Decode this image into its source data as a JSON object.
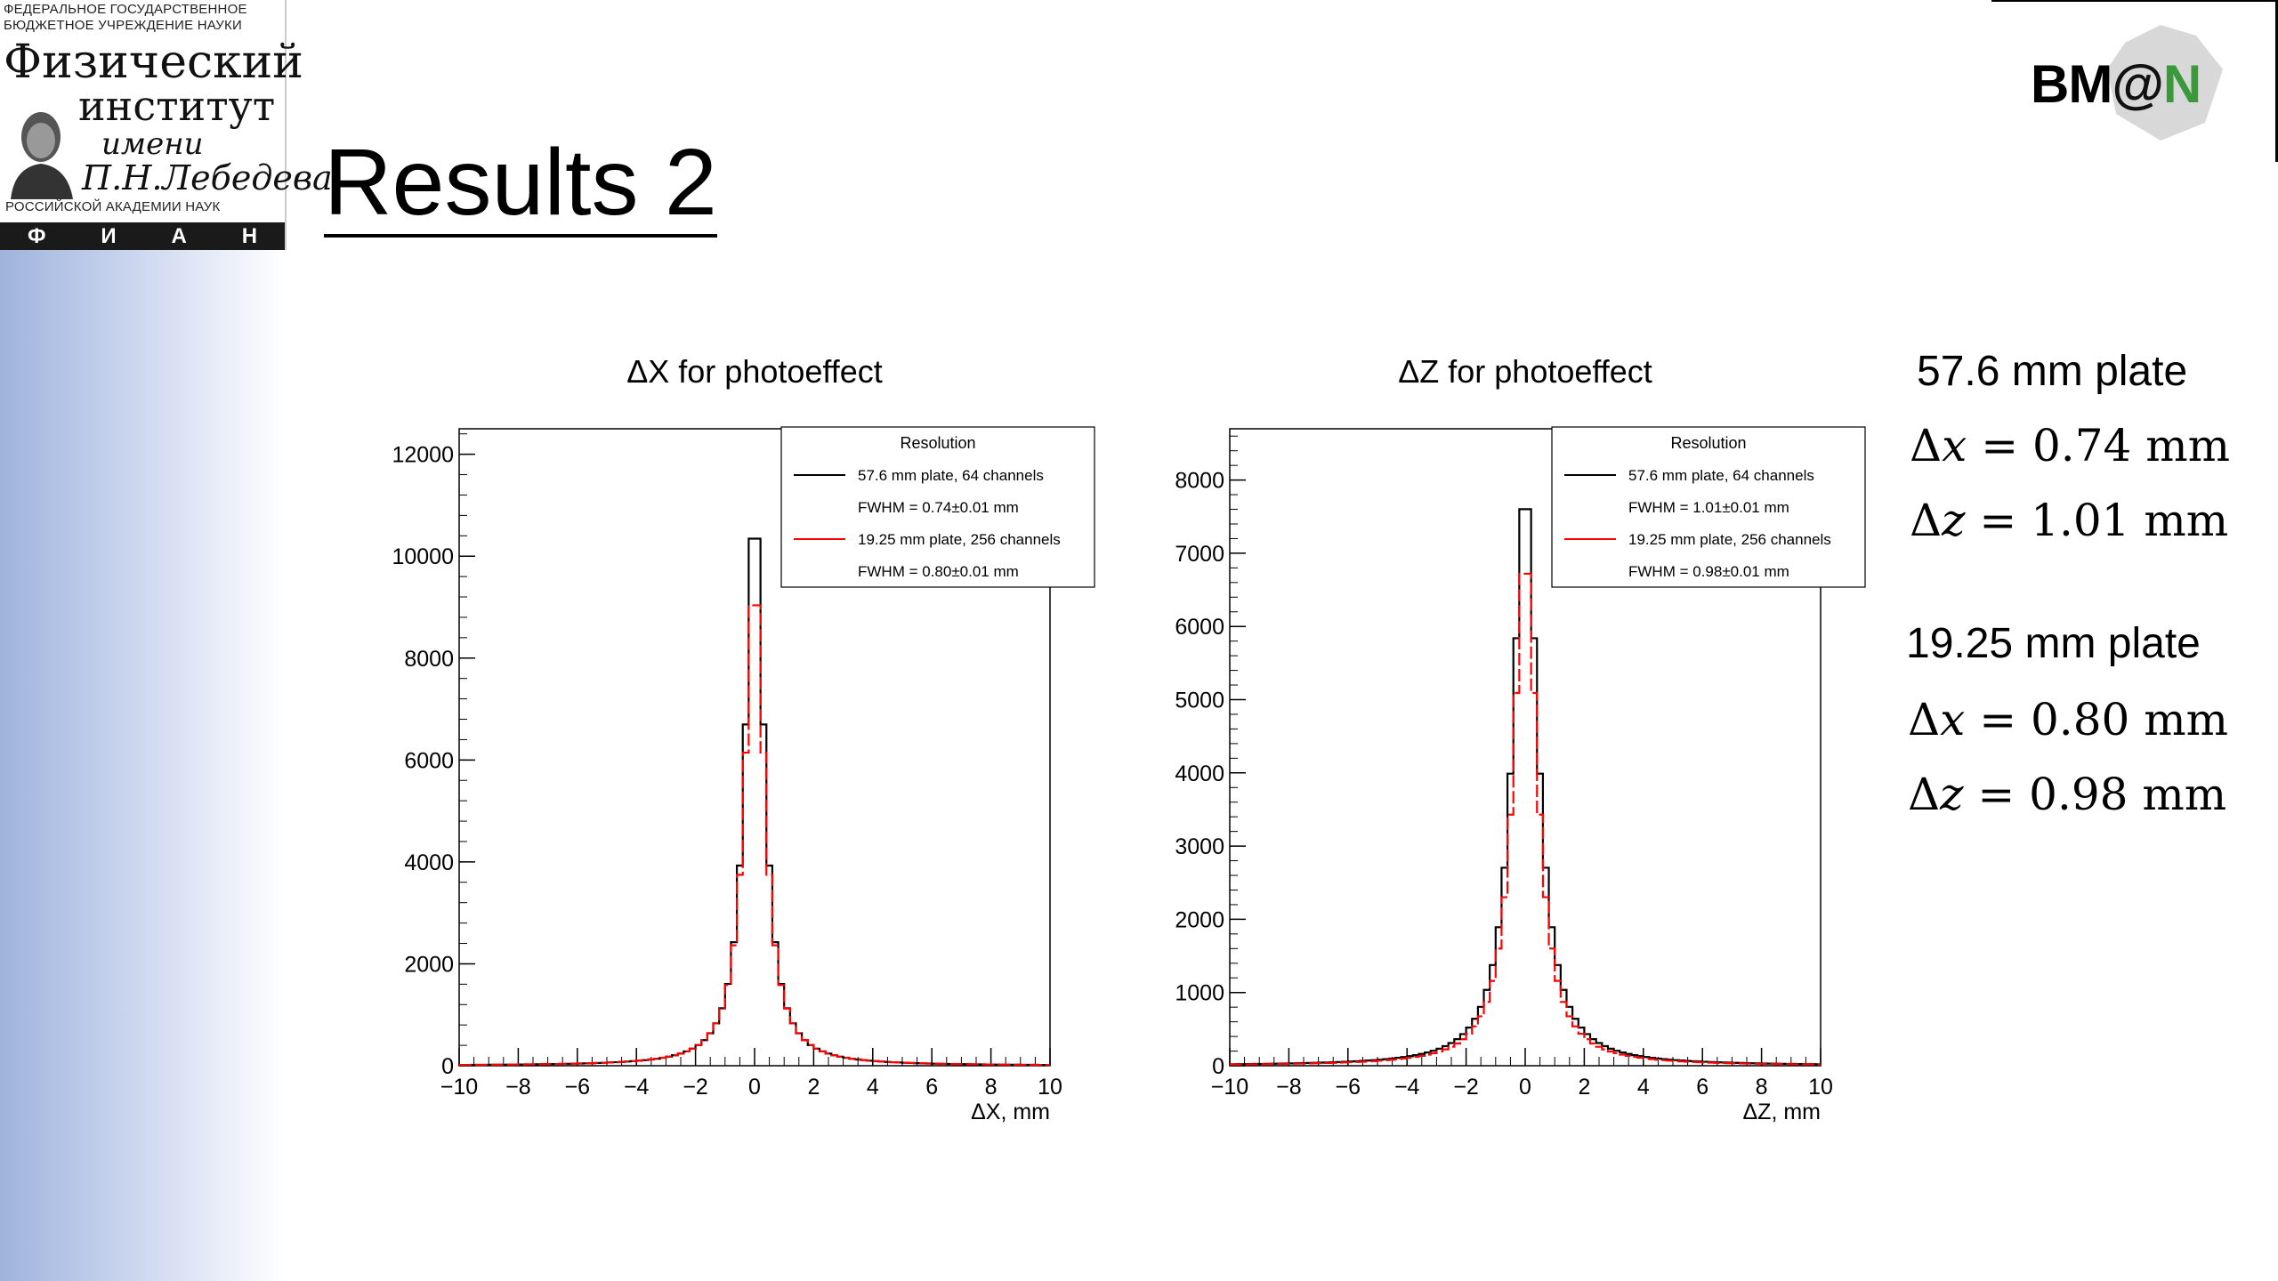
{
  "slide": {
    "title": "Results 2"
  },
  "logo": {
    "line1": "ФЕДЕРАЛЬНОЕ ГОСУДАРСТВЕННОЕ",
    "line2": "БЮДЖЕТНОЕ  УЧРЕЖДЕНИЕ НАУКИ",
    "name1": "Физический",
    "name2": "институт",
    "name3": "имени",
    "name4": "П.Н.Лебедева",
    "line3": "РОССИЙСКОЙ АКАДЕМИИ НАУК",
    "band": [
      "Ф",
      "И",
      "А",
      "Н"
    ]
  },
  "bmn_logo": {
    "text_a": "BM",
    "text_b": "@",
    "text_c": "N"
  },
  "summary": {
    "plate1_label": "57.6 mm plate",
    "plate1_dx": "0.74 mm",
    "plate1_dz": "1.01 mm",
    "plate2_label": "19.25 mm plate",
    "plate2_dx": "0.80 mm",
    "plate2_dz": "0.98 mm"
  },
  "colors": {
    "series1": "#000000",
    "series2": "#ff0000"
  },
  "chart_data": [
    {
      "type": "line",
      "title": "ΔX for photoeffect",
      "xlabel": "ΔX, mm",
      "ylabel": "",
      "xlim": [
        -10,
        10
      ],
      "ylim": [
        0,
        12500
      ],
      "xticks": [
        -10,
        -8,
        -6,
        -4,
        -2,
        0,
        2,
        4,
        6,
        8,
        10
      ],
      "xtick_labels": [
        "−10",
        "−8",
        "−6",
        "−4",
        "−2",
        "0",
        "2",
        "4",
        "6",
        "8",
        "10"
      ],
      "yticks": [
        0,
        2000,
        4000,
        6000,
        8000,
        10000,
        12000
      ],
      "ytick_labels": [
        "0",
        "2000",
        "4000",
        "6000",
        "8000",
        "10000",
        "12000"
      ],
      "legend": {
        "title": "Resolution",
        "position": "top-right",
        "entries": [
          {
            "label": "57.6 mm plate, 64 channels",
            "sub": "FWHM = 0.74±0.01 mm"
          },
          {
            "label": "19.25 mm plate, 256 channels",
            "sub": "FWHM = 0.80±0.01 mm"
          }
        ]
      },
      "series": [
        {
          "peak": 11100,
          "fwhm": 0.74
        },
        {
          "peak": 9600,
          "fwhm": 0.8
        }
      ]
    },
    {
      "type": "line",
      "title": "ΔZ for photoeffect",
      "xlabel": "ΔZ, mm",
      "ylabel": "",
      "xlim": [
        -10,
        10
      ],
      "ylim": [
        0,
        8700
      ],
      "xticks": [
        -10,
        -8,
        -6,
        -4,
        -2,
        0,
        2,
        4,
        6,
        8,
        10
      ],
      "xtick_labels": [
        "−10",
        "−8",
        "−6",
        "−4",
        "−2",
        "0",
        "2",
        "4",
        "6",
        "8",
        "10"
      ],
      "yticks": [
        0,
        1000,
        2000,
        3000,
        4000,
        5000,
        6000,
        7000,
        8000
      ],
      "ytick_labels": [
        "0",
        "1000",
        "2000",
        "3000",
        "4000",
        "5000",
        "6000",
        "7000",
        "8000"
      ],
      "legend": {
        "title": "Resolution",
        "position": "top-right",
        "entries": [
          {
            "label": "57.6 mm plate, 64 channels",
            "sub": "FWHM = 1.01±0.01 mm"
          },
          {
            "label": "19.25 mm plate, 256 channels",
            "sub": "FWHM = 0.98±0.01 mm"
          }
        ]
      },
      "series": [
        {
          "peak": 7900,
          "fwhm": 1.01
        },
        {
          "peak": 7000,
          "fwhm": 0.98
        }
      ]
    }
  ]
}
